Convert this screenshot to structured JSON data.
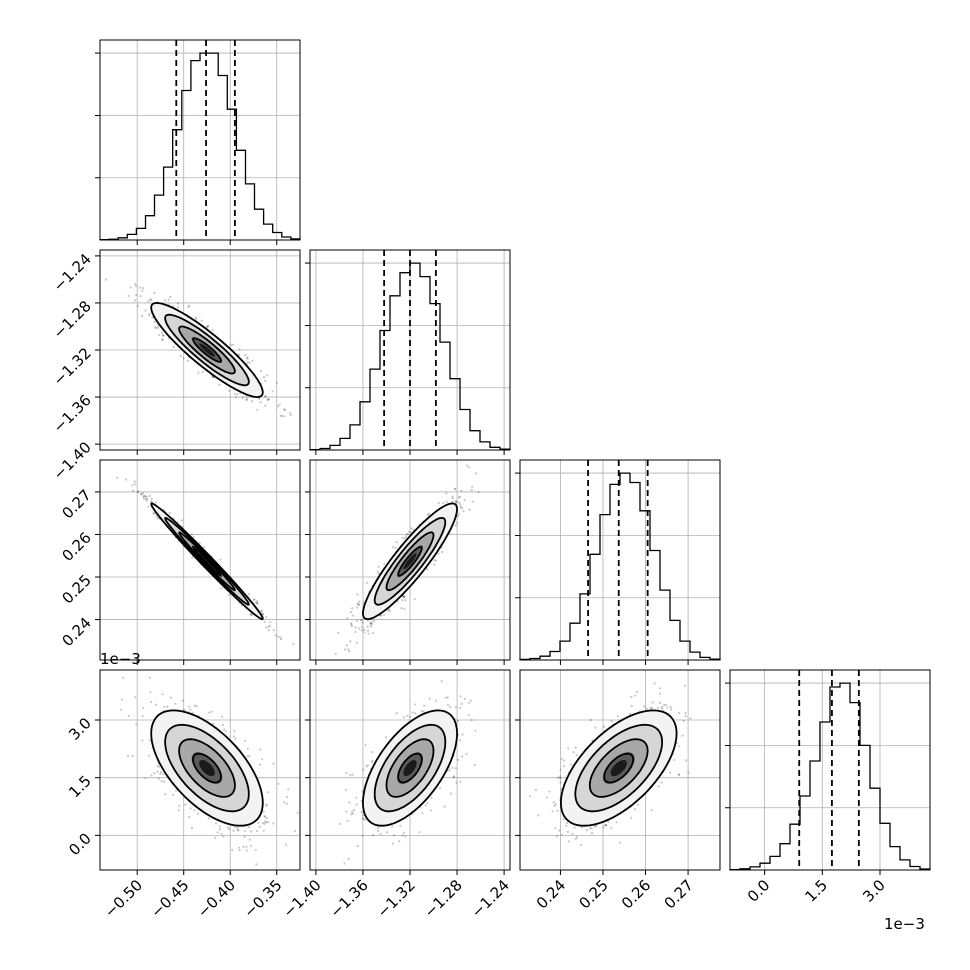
{
  "chart_data": {
    "type": "scatter",
    "title": "",
    "parameters": [
      {
        "index": 0,
        "range": [
          -0.54,
          -0.325
        ],
        "ticks": [
          -0.5,
          -0.45,
          -0.4,
          -0.35
        ],
        "tick_labels": [
          "−0.50",
          "−0.45",
          "−0.40",
          "−0.35"
        ]
      },
      {
        "index": 1,
        "range": [
          -1.405,
          -1.235
        ],
        "ticks": [
          -1.4,
          -1.36,
          -1.32,
          -1.28,
          -1.24
        ],
        "tick_labels": [
          "−1.40",
          "−1.36",
          "−1.32",
          "−1.28",
          "−1.24"
        ]
      },
      {
        "index": 2,
        "range": [
          0.2305,
          0.2775
        ],
        "ticks": [
          0.24,
          0.25,
          0.26,
          0.27
        ],
        "tick_labels": [
          "0.24",
          "0.25",
          "0.26",
          "0.27"
        ]
      },
      {
        "index": 3,
        "range": [
          -0.9,
          4.3
        ],
        "ticks": [
          0.0,
          1.5,
          3.0
        ],
        "tick_labels": [
          "0.0",
          "1.5",
          "3.0"
        ],
        "offset_label": "1e−3"
      }
    ],
    "marginals": [
      {
        "parameter": 0,
        "bin_range": [
          -0.54,
          -0.325
        ],
        "quantiles": [
          -0.458,
          -0.426,
          -0.395
        ],
        "counts": [
          2,
          4,
          12,
          30,
          62,
          130,
          240,
          390,
          590,
          800,
          960,
          1000,
          1000,
          880,
          700,
          480,
          300,
          165,
          85,
          40,
          16,
          6
        ]
      },
      {
        "parameter": 1,
        "bin_range": [
          -1.405,
          -1.235
        ],
        "quantiles": [
          -1.342,
          -1.32,
          -1.298
        ],
        "counts": [
          2,
          8,
          24,
          60,
          130,
          250,
          420,
          620,
          800,
          920,
          970,
          900,
          760,
          560,
          370,
          210,
          100,
          42,
          14,
          4
        ]
      },
      {
        "parameter": 2,
        "bin_range": [
          0.2305,
          0.2775
        ],
        "quantiles": [
          0.2465,
          0.2537,
          0.2605
        ],
        "counts": [
          3,
          8,
          20,
          45,
          100,
          195,
          350,
          560,
          770,
          930,
          990,
          940,
          790,
          580,
          370,
          210,
          100,
          42,
          14,
          4
        ]
      },
      {
        "parameter": 3,
        "bin_range": [
          -0.9,
          4.3
        ],
        "quantiles": [
          0.9,
          1.75,
          2.45
        ],
        "counts": [
          2,
          6,
          16,
          35,
          70,
          135,
          235,
          380,
          560,
          760,
          940,
          960,
          860,
          640,
          420,
          240,
          120,
          52,
          18,
          5
        ]
      }
    ],
    "joint": [
      {
        "x": 0,
        "y": 1,
        "mean": [
          -0.425,
          -1.32
        ],
        "sd": [
          0.03,
          0.02
        ],
        "rho": -0.9
      },
      {
        "x": 0,
        "y": 2,
        "mean": [
          -0.425,
          0.2537
        ],
        "sd": [
          0.03,
          0.0068
        ],
        "rho": -0.99
      },
      {
        "x": 0,
        "y": 3,
        "mean": [
          -0.425,
          1.75
        ],
        "sd": [
          0.03,
          0.75
        ],
        "rho": -0.6
      },
      {
        "x": 1,
        "y": 2,
        "mean": [
          -1.32,
          0.2537
        ],
        "sd": [
          0.02,
          0.0068
        ],
        "rho": 0.9
      },
      {
        "x": 1,
        "y": 3,
        "mean": [
          -1.32,
          1.75
        ],
        "sd": [
          0.02,
          0.75
        ],
        "rho": 0.6
      },
      {
        "x": 2,
        "y": 3,
        "mean": [
          0.2537,
          1.75
        ],
        "sd": [
          0.0068,
          0.75
        ],
        "rho": 0.6
      }
    ],
    "contour_levels_sigma": [
      0.5,
      1.0,
      1.5,
      2.0
    ],
    "grid": true,
    "legend": "none"
  }
}
